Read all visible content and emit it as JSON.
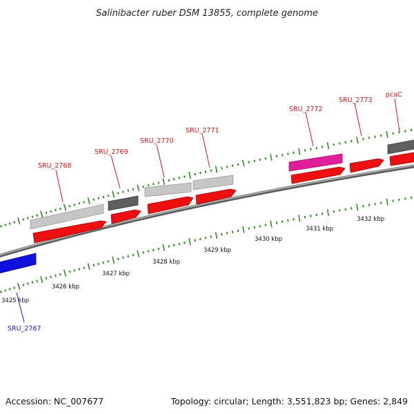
{
  "title": "Salinibacter ruber DSM 13855, complete genome",
  "accession": "Accession: NC_007677",
  "summary": "Topology: circular; Length: 3,551,823 bp; Genes: 2,849",
  "colors": {
    "backbone": "#8a8a8a",
    "tick": "#2e8b1e",
    "cds": "#ee1010",
    "gene_light": "#c4c4c4",
    "gene_dark": "#5e5e5e",
    "gene_magenta": "#e0209a",
    "gene_blue": "#1010dd",
    "label_red": "#d01818",
    "label_blue": "#1a1acc"
  },
  "scale_labels": [
    "3425 kbp",
    "3426 kbp",
    "3427 kbp",
    "3428 kbp",
    "3429 kbp",
    "3430 kbp",
    "3431 kbp",
    "3432 kbp"
  ],
  "gene_labels": [
    "SRU_2768",
    "SRU_2769",
    "SRU_2770",
    "SRU_2771",
    "SRU_2772",
    "SRU_2773",
    "pcaC",
    "SRU_2767"
  ]
}
